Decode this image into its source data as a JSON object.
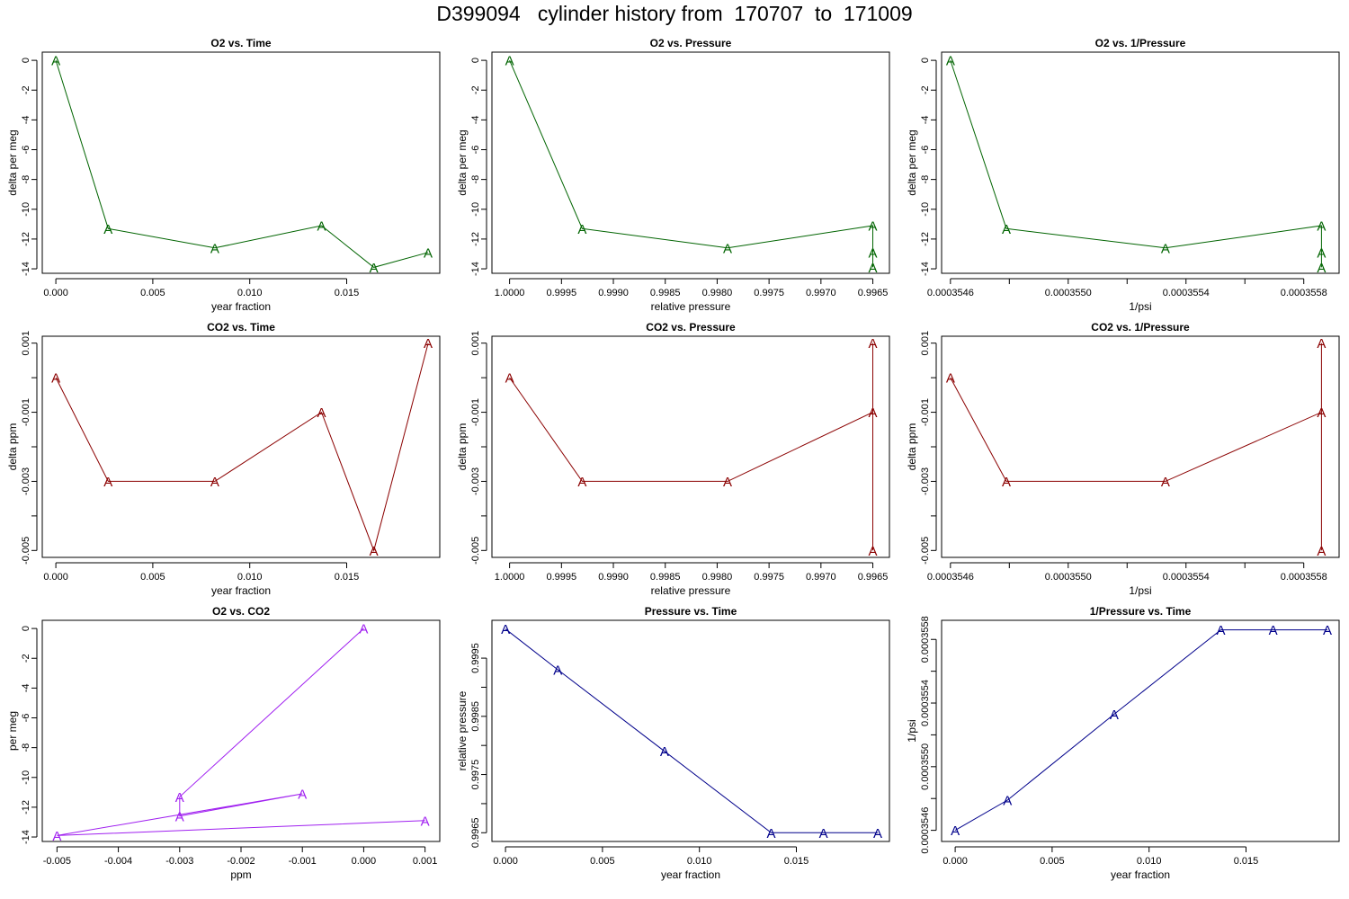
{
  "page_title": "D399094   cylinder history from  170707  to  171009",
  "colors": {
    "o2": "#006400",
    "co2": "#8b0000",
    "o2_co2": "#a020f0",
    "pressure": "#00008b",
    "axes": "#000000"
  },
  "point_label": "A",
  "chart_data": [
    {
      "type": "line",
      "title": "O2 vs. Time",
      "xlabel": "year fraction",
      "ylabel": "delta per meg",
      "color_key": "o2",
      "xlim": [
        -0.0007,
        0.0198
      ],
      "ylim": [
        -14.3,
        0.55
      ],
      "x_reversed": false,
      "xticks": [
        0,
        0.005,
        0.01,
        0.015
      ],
      "xtick_labels": [
        "0.000",
        "0.005",
        "0.010",
        "0.015"
      ],
      "yticks": [
        0,
        -2,
        -4,
        -6,
        -8,
        -10,
        -12,
        -14
      ],
      "ytick_labels": [
        "0",
        "-2",
        "-4",
        "-6",
        "-8",
        "-10",
        "-12",
        "-14"
      ],
      "x": [
        0.0,
        0.0027,
        0.0082,
        0.0137,
        0.0164,
        0.0192
      ],
      "y": [
        0.0,
        -11.3,
        -12.6,
        -11.1,
        -13.9,
        -12.9
      ]
    },
    {
      "type": "line",
      "title": "O2 vs. Pressure",
      "xlabel": "relative pressure",
      "ylabel": "delta per meg",
      "color_key": "o2",
      "xlim": [
        1.00017,
        0.99634
      ],
      "ylim": [
        -14.3,
        0.55
      ],
      "x_reversed": true,
      "xticks": [
        1.0,
        0.9995,
        0.999,
        0.9985,
        0.998,
        0.9975,
        0.997,
        0.9965
      ],
      "xtick_labels": [
        "1.0000",
        "0.9995",
        "0.9990",
        "0.9985",
        "0.9980",
        "0.9975",
        "0.9970",
        "0.9965"
      ],
      "yticks": [
        0,
        -2,
        -4,
        -6,
        -8,
        -10,
        -12,
        -14
      ],
      "ytick_labels": [
        "0",
        "-2",
        "-4",
        "-6",
        "-8",
        "-10",
        "-12",
        "-14"
      ],
      "x": [
        1.0,
        0.9993,
        0.9979,
        0.9965,
        0.9965,
        0.9965
      ],
      "y": [
        0.0,
        -11.3,
        -12.6,
        -11.1,
        -13.9,
        -12.9
      ]
    },
    {
      "type": "line",
      "title": "O2 vs. 1/Pressure",
      "xlabel": "1/psi",
      "ylabel": "delta per meg",
      "color_key": "o2",
      "xlim": [
        0.00035457,
        0.00035592
      ],
      "ylim": [
        -14.3,
        0.55
      ],
      "x_reversed": false,
      "xticks": [
        0.0003546,
        0.0003548,
        0.000355,
        0.0003552,
        0.0003554,
        0.0003556,
        0.0003558
      ],
      "xtick_labels": [
        "0.0003546",
        "",
        "0.0003550",
        "",
        "0.0003554",
        "",
        "0.0003558"
      ],
      "yticks": [
        0,
        -2,
        -4,
        -6,
        -8,
        -10,
        -12,
        -14
      ],
      "ytick_labels": [
        "0",
        "-2",
        "-4",
        "-6",
        "-8",
        "-10",
        "-12",
        "-14"
      ],
      "x": [
        0.0003546,
        0.00035479,
        0.00035533,
        0.00035586,
        0.00035586,
        0.00035586
      ],
      "y": [
        0.0,
        -11.3,
        -12.6,
        -11.1,
        -13.9,
        -12.9
      ]
    },
    {
      "type": "line",
      "title": "CO2 vs. Time",
      "xlabel": "year fraction",
      "ylabel": "delta ppm",
      "color_key": "co2",
      "xlim": [
        -0.0007,
        0.0198
      ],
      "ylim": [
        -0.0052,
        0.0012
      ],
      "x_reversed": false,
      "xticks": [
        0,
        0.005,
        0.01,
        0.015
      ],
      "xtick_labels": [
        "0.000",
        "0.005",
        "0.010",
        "0.015"
      ],
      "yticks": [
        0.001,
        -0.001,
        -0.003,
        -0.005
      ],
      "ytick_labels": [
        "0.001",
        "-0.001",
        "-0.003",
        "-0.005"
      ],
      "minor_yticks": [
        0,
        -0.002,
        -0.004
      ],
      "x": [
        0.0,
        0.0027,
        0.0082,
        0.0137,
        0.0164,
        0.0192
      ],
      "y": [
        0.0,
        -0.003,
        -0.003,
        -0.001,
        -0.005,
        0.001
      ]
    },
    {
      "type": "line",
      "title": "CO2 vs. Pressure",
      "xlabel": "relative pressure",
      "ylabel": "delta ppm",
      "color_key": "co2",
      "xlim": [
        1.00017,
        0.99634
      ],
      "ylim": [
        -0.0052,
        0.0012
      ],
      "x_reversed": true,
      "xticks": [
        1.0,
        0.9995,
        0.999,
        0.9985,
        0.998,
        0.9975,
        0.997,
        0.9965
      ],
      "xtick_labels": [
        "1.0000",
        "0.9995",
        "0.9990",
        "0.9985",
        "0.9980",
        "0.9975",
        "0.9970",
        "0.9965"
      ],
      "yticks": [
        0.001,
        -0.001,
        -0.003,
        -0.005
      ],
      "ytick_labels": [
        "0.001",
        "-0.001",
        "-0.003",
        "-0.005"
      ],
      "minor_yticks": [
        0,
        -0.002,
        -0.004
      ],
      "x": [
        1.0,
        0.9993,
        0.9979,
        0.9965,
        0.9965,
        0.9965
      ],
      "y": [
        0.0,
        -0.003,
        -0.003,
        -0.001,
        -0.005,
        0.001
      ]
    },
    {
      "type": "line",
      "title": "CO2 vs. 1/Pressure",
      "xlabel": "1/psi",
      "ylabel": "delta ppm",
      "color_key": "co2",
      "xlim": [
        0.00035457,
        0.00035592
      ],
      "ylim": [
        -0.0052,
        0.0012
      ],
      "x_reversed": false,
      "xticks": [
        0.0003546,
        0.0003548,
        0.000355,
        0.0003552,
        0.0003554,
        0.0003556,
        0.0003558
      ],
      "xtick_labels": [
        "0.0003546",
        "",
        "0.0003550",
        "",
        "0.0003554",
        "",
        "0.0003558"
      ],
      "yticks": [
        0.001,
        -0.001,
        -0.003,
        -0.005
      ],
      "ytick_labels": [
        "0.001",
        "-0.001",
        "-0.003",
        "-0.005"
      ],
      "minor_yticks": [
        0,
        -0.002,
        -0.004
      ],
      "x": [
        0.0003546,
        0.00035479,
        0.00035533,
        0.00035586,
        0.00035586,
        0.00035586
      ],
      "y": [
        0.0,
        -0.003,
        -0.003,
        -0.001,
        -0.005,
        0.001
      ]
    },
    {
      "type": "line",
      "title": "O2 vs. CO2",
      "xlabel": "ppm",
      "ylabel": "per meg",
      "color_key": "o2_co2",
      "xlim": [
        -0.00524,
        0.00124
      ],
      "ylim": [
        -14.3,
        0.55
      ],
      "x_reversed": false,
      "xticks": [
        -0.005,
        -0.004,
        -0.003,
        -0.002,
        -0.001,
        0,
        0.001
      ],
      "xtick_labels": [
        "-0.005",
        "-0.004",
        "-0.003",
        "-0.002",
        "-0.001",
        "0.000",
        "0.001"
      ],
      "yticks": [
        0,
        -2,
        -4,
        -6,
        -8,
        -10,
        -12,
        -14
      ],
      "ytick_labels": [
        "0",
        "-2",
        "-4",
        "-6",
        "-8",
        "-10",
        "-12",
        "-14"
      ],
      "x": [
        0.0,
        -0.003,
        -0.003,
        -0.001,
        -0.005,
        0.001
      ],
      "y": [
        0.0,
        -11.3,
        -12.6,
        -11.1,
        -13.9,
        -12.9
      ]
    },
    {
      "type": "line",
      "title": "Pressure vs. Time",
      "xlabel": "year fraction",
      "ylabel": "relative pressure",
      "color_key": "pressure",
      "xlim": [
        -0.0007,
        0.0198
      ],
      "ylim": [
        0.99635,
        1.00015
      ],
      "x_reversed": false,
      "xticks": [
        0,
        0.005,
        0.01,
        0.015
      ],
      "xtick_labels": [
        "0.000",
        "0.005",
        "0.010",
        "0.015"
      ],
      "yticks": [
        0.9995,
        0.9985,
        0.9975,
        0.9965
      ],
      "ytick_labels": [
        "0.9995",
        "0.9985",
        "0.9975",
        "0.9965"
      ],
      "minor_yticks": [
        0.999,
        0.998,
        0.997
      ],
      "x": [
        0.0,
        0.0027,
        0.0082,
        0.0137,
        0.0164,
        0.0192
      ],
      "y": [
        1.0,
        0.9993,
        0.9979,
        0.9965,
        0.9965,
        0.9965
      ]
    },
    {
      "type": "line",
      "title": "1/Pressure vs. Time",
      "xlabel": "year fraction",
      "ylabel": "1/psi",
      "color_key": "pressure",
      "xlim": [
        -0.0007,
        0.0198
      ],
      "ylim": [
        0.00035453,
        0.00035592
      ],
      "x_reversed": false,
      "xticks": [
        0,
        0.005,
        0.01,
        0.015
      ],
      "xtick_labels": [
        "0.000",
        "0.005",
        "0.010",
        "0.015"
      ],
      "yticks": [
        0.0003546,
        0.000355,
        0.0003554,
        0.0003558
      ],
      "ytick_labels": [
        "0.0003546",
        "0.0003550",
        "0.0003554",
        "0.0003558"
      ],
      "minor_yticks": [
        0.0003548,
        0.0003552,
        0.0003556
      ],
      "x": [
        0.0,
        0.0027,
        0.0082,
        0.0137,
        0.0164,
        0.0192
      ],
      "y": [
        0.0003546,
        0.00035479,
        0.00035533,
        0.00035586,
        0.00035586,
        0.00035586
      ]
    }
  ]
}
